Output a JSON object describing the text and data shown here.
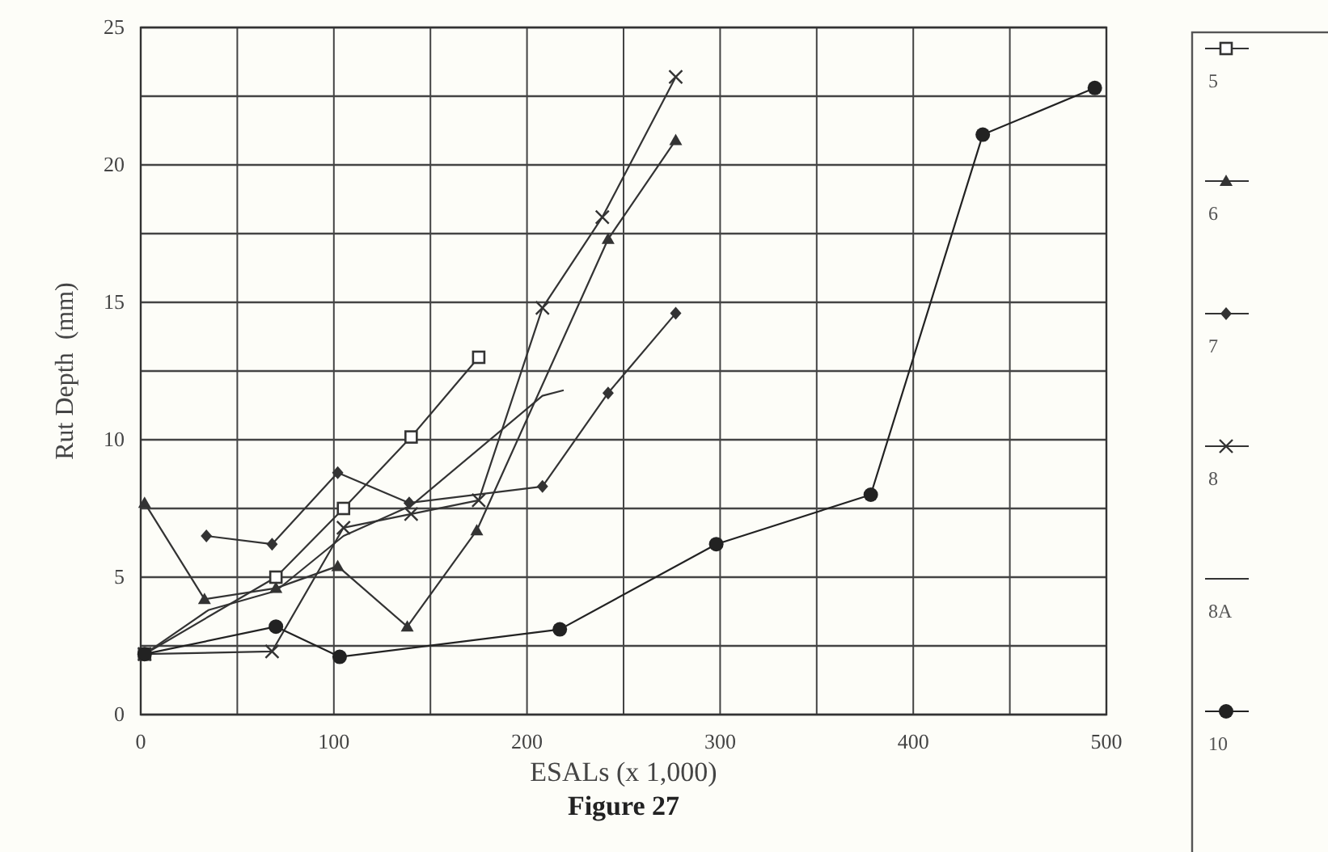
{
  "chart_data": {
    "type": "line",
    "xlabel": "ESALs (x 1,000)",
    "ylabel": "Rut Depth  (mm)",
    "annotations": [
      "Figure 27"
    ],
    "xlim": [
      0,
      500
    ],
    "ylim": [
      0,
      25
    ],
    "xticks": [
      0,
      {
        "value": 50,
        "label": null
      },
      100,
      {
        "value": 150,
        "label": null
      },
      200,
      {
        "value": 250,
        "label": null
      },
      300,
      {
        "value": 350,
        "label": null
      },
      400,
      {
        "value": 450,
        "label": null
      },
      500
    ],
    "yticks": [
      0,
      {
        "value": 2.5,
        "label": null
      },
      5,
      {
        "value": 7.5,
        "label": null
      },
      10,
      {
        "value": 12.5,
        "label": null
      },
      15,
      {
        "value": 17.5,
        "label": null
      },
      20,
      {
        "value": 22.5,
        "label": null
      },
      25
    ],
    "grid": true,
    "legend": "right",
    "series": [
      {
        "name": "5",
        "color": "#333333",
        "marker": "square",
        "x": [
          2,
          70,
          105,
          140,
          175
        ],
        "values": [
          2.2,
          5,
          7.5,
          10.1,
          13
        ]
      },
      {
        "name": "6",
        "color": "#333333",
        "marker": "triangle",
        "x": [
          2,
          33,
          70,
          102,
          138,
          174,
          242,
          277
        ],
        "values": [
          7.7,
          4.2,
          4.6,
          5.4,
          3.2,
          6.7,
          17.3,
          20.9
        ]
      },
      {
        "name": "7",
        "color": "#333333",
        "marker": "diamond",
        "x": [
          34,
          68,
          102,
          139,
          208,
          242,
          277
        ],
        "values": [
          6.5,
          6.2,
          8.8,
          7.7,
          8.3,
          11.7,
          14.6
        ]
      },
      {
        "name": "8",
        "color": "#333333",
        "marker": "cross",
        "x": [
          2,
          68,
          105,
          140,
          175,
          208,
          239,
          277
        ],
        "values": [
          2.2,
          2.3,
          6.8,
          7.3,
          7.8,
          14.8,
          18.1,
          23.2
        ]
      },
      {
        "name": "8A",
        "color": "#333333",
        "marker": "none",
        "x": [
          2,
          35,
          70,
          105,
          140,
          208,
          219
        ],
        "values": [
          2.2,
          3.8,
          4.5,
          6.5,
          7.6,
          11.6,
          11.8
        ]
      },
      {
        "name": "10",
        "color": "#222222",
        "marker": "circle",
        "x": [
          2,
          70,
          103,
          217,
          298,
          378,
          436,
          494
        ],
        "values": [
          2.2,
          3.2,
          2.1,
          3.1,
          6.2,
          8.0,
          21.1,
          22.8
        ]
      }
    ]
  }
}
